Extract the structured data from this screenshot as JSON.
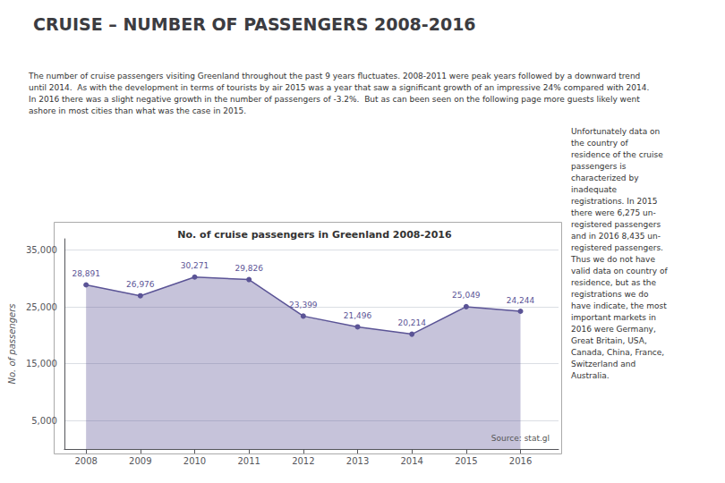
{
  "chart_data": {
    "type": "area",
    "title": "CRUISE – NUMBER OF PASSENGERS 2008-2016",
    "subtitle": "No. of cruise passengers in Greenland 2008-2016",
    "annotations": [
      "The number of cruise passengers visiting Greenland throughout the past 9 years fluctuates. 2008-2011 were peak years followed by a downward trend\nuntil 2014.  As with the development in terms of tourists by air 2015 was a year that saw a significant growth of an impressive 24% compared with 2014.\nIn 2016 there was a slight negative growth in the number of passengers of -3.2%.  But as can been seen on the following page more guests likely went\nashore in most cities than what was the case in 2015.",
      "Unfortunately data on\nthe country of\nresidence of the cruise\npassengers is\ncharacterized by\ninadequate\nregistrations. In 2015\nthere were 6,275 un-\nregistered passengers\nand in 2016 8,435 un-\nregistered passengers.\nThus we do not have\nvalid data on country of\nresidence, but as the\nregistrations we do\nhave indicate, the most\nimportant markets in\n2016 were Germany,\nGreat Britain, USA,\nCanada, China, France,\nSwitzerland and\nAustralia.",
      "Source: stat.gl"
    ],
    "ylabel": "No. of passengers",
    "x": [
      2008,
      2009,
      2010,
      2011,
      2012,
      2013,
      2014,
      2015,
      2016
    ],
    "values": [
      28891,
      26976,
      30271,
      29826,
      23399,
      21496,
      20214,
      25049,
      24244
    ],
    "value_labels": [
      "28,891",
      "26,976",
      "30,271",
      "29,826",
      "23,399",
      "21,496",
      "20,214",
      "25,049",
      "24,244"
    ],
    "data_labels": true,
    "color": "#5B5496",
    "marker": "circle",
    "xlim": [
      2007.6,
      2016.7
    ],
    "xticks": [
      2008,
      2009,
      2010,
      2011,
      2012,
      2013,
      2014,
      2015,
      2016
    ],
    "ylim": [
      0,
      37000
    ],
    "yticks": [
      {
        "value": 5000,
        "label": "5,000"
      },
      {
        "value": 15000,
        "label": "15,000"
      },
      {
        "value": 25000,
        "label": "25,000"
      },
      {
        "value": 35000,
        "label": "35,000"
      }
    ],
    "grid": true
  }
}
